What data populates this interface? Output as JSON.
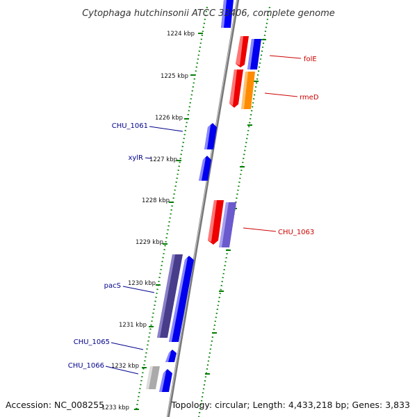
{
  "title": "Cytophaga hutchinsonii ATCC 33406, complete genome",
  "footer": {
    "accession": "Accession: NC_008255",
    "topology": "Topology: circular; Length: 4,433,218 bp; Genes: 3,833"
  },
  "colors": {
    "forward_gene": "#0000ff",
    "reverse_gene": "#ff0000",
    "tick": "#007f00",
    "backbone": "#888888",
    "forward_label": "#00008b",
    "reverse_label": "#cc0000",
    "orange_gene": "#ff8c00",
    "purple_gene": "#6a5acd",
    "dark_purple_gene": "#483d8b",
    "gray_gene": "#aaaaaa"
  },
  "ticks": [
    {
      "label": "1224 kbp"
    },
    {
      "label": "1225 kbp"
    },
    {
      "label": "1226 kbp"
    },
    {
      "label": "1227 kbp"
    },
    {
      "label": "1228 kbp"
    },
    {
      "label": "1229 kbp"
    },
    {
      "label": "1230 kbp"
    },
    {
      "label": "1231 kbp"
    },
    {
      "label": "1232 kbp"
    },
    {
      "label": "1233 kbp"
    }
  ],
  "gene_labels": {
    "folE": "folE",
    "rmeD": "rmeD",
    "CHU_1061": "CHU_1061",
    "xylR": "xylR",
    "CHU_1063": "CHU_1063",
    "pacS": "pacS",
    "CHU_1065": "CHU_1065",
    "CHU_1066": "CHU_1066"
  }
}
